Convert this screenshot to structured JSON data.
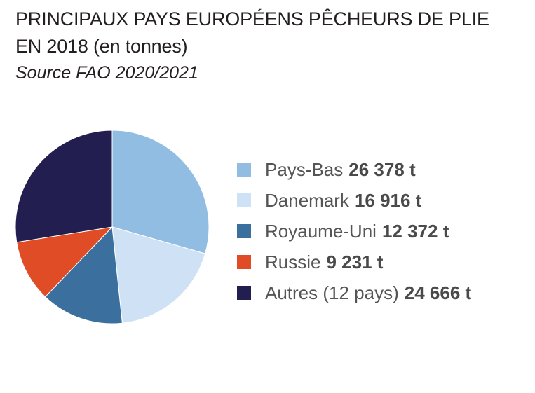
{
  "chart_data": {
    "type": "pie",
    "title_line1": "PRINCIPAUX PAYS EUROPÉENS PÊCHEURS DE PLIE",
    "title_line2": "EN 2018",
    "title_unit": "(en tonnes)",
    "source": "Source FAO 2020/2021",
    "slices": [
      {
        "label": "Pays-Bas",
        "value": 26378,
        "value_label": "26 378 t",
        "color": "#91bde3"
      },
      {
        "label": "Danemark",
        "value": 16916,
        "value_label": "16 916 t",
        "color": "#cfe1f4"
      },
      {
        "label": "Royaume-Uni",
        "value": 12372,
        "value_label": "12 372 t",
        "color": "#3a6f9e"
      },
      {
        "label": "Russie",
        "value": 9231,
        "value_label": "9 231 t",
        "color": "#e04c25"
      },
      {
        "label": "Autres (12 pays)",
        "value": 24666,
        "value_label": "24 666 t",
        "color": "#221e4f"
      }
    ],
    "legend_position": "right"
  }
}
